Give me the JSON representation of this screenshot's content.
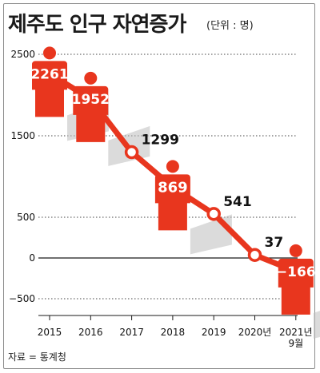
{
  "header": {
    "title": "제주도 인구 자연증가",
    "subtitle": "(단위 : 명)"
  },
  "footer": {
    "source": "자료 = 통계청"
  },
  "colors": {
    "accent": "#e8361e",
    "line": "#e8361e",
    "shadow": "#bdbdbd",
    "axis": "#1a1a1a"
  },
  "chart_data": {
    "type": "line",
    "title": "제주도 인구 자연증가",
    "subtitle": "(단위 : 명)",
    "xlabel": "",
    "ylabel": "",
    "categories": [
      "2015",
      "2016",
      "2017",
      "2018",
      "2019",
      "2020년",
      "2021년 9월"
    ],
    "category_lines": [
      [
        "2015"
      ],
      [
        "2016"
      ],
      [
        "2017"
      ],
      [
        "2018"
      ],
      [
        "2019"
      ],
      [
        "2020년"
      ],
      [
        "2021년",
        "9월"
      ]
    ],
    "values": [
      2261,
      1952,
      1299,
      869,
      541,
      37,
      -166
    ],
    "value_labels": [
      "2261",
      "1952",
      "1299",
      "869",
      "541",
      "37",
      "−166"
    ],
    "marker_style": [
      "person",
      "person",
      "circle",
      "person",
      "circle",
      "circle",
      "person"
    ],
    "y_ticks": [
      2500,
      1500,
      500,
      0,
      -500
    ],
    "ylim": [
      -500,
      2500
    ],
    "grid": "dotted horizontal",
    "legend": "none"
  }
}
